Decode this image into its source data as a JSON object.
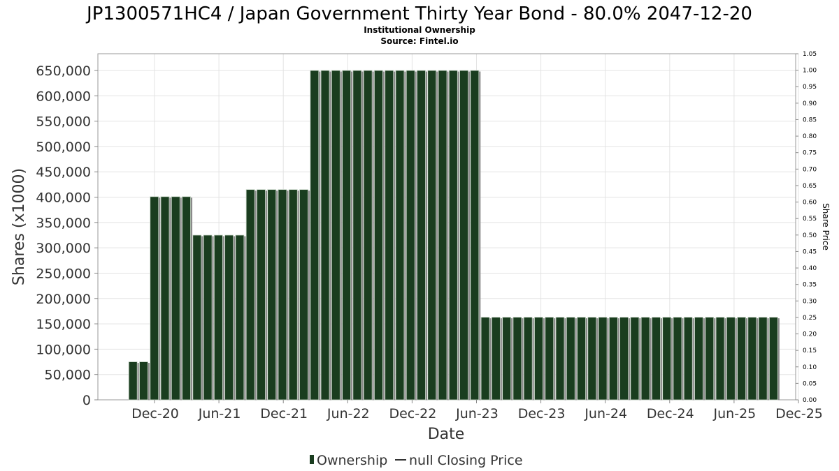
{
  "chart_data": {
    "type": "bar",
    "title": "JP1300571HC4 / Japan Government Thirty Year Bond - 80.0% 2047-12-20",
    "subtitle_line1": "Institutional Ownership",
    "subtitle_line2": "Source: Fintel.io",
    "xlabel": "Date",
    "ylabel": "Shares (x1000)",
    "y2label": "Share Price",
    "ylim": [
      0,
      680000
    ],
    "y2lim": [
      0,
      1.05
    ],
    "yticks": [
      "0",
      "50,000",
      "100,000",
      "150,000",
      "200,000",
      "250,000",
      "300,000",
      "350,000",
      "400,000",
      "450,000",
      "500,000",
      "550,000",
      "600,000",
      "650,000"
    ],
    "y2ticks": [
      "0.00",
      "0.05",
      "0.10",
      "0.15",
      "0.20",
      "0.25",
      "0.30",
      "0.35",
      "0.40",
      "0.45",
      "0.50",
      "0.55",
      "0.60",
      "0.65",
      "0.70",
      "0.75",
      "0.80",
      "0.85",
      "0.90",
      "0.95",
      "1.00",
      "1.05"
    ],
    "xticks": [
      "Dec-20",
      "Jun-21",
      "Dec-21",
      "Jun-22",
      "Dec-22",
      "Jun-23",
      "Dec-23",
      "Jun-24",
      "Dec-24",
      "Jun-25",
      "Dec-25"
    ],
    "grid": true,
    "legend_position": "bottom",
    "series": [
      {
        "name": "Ownership",
        "color": "#1a3d1f",
        "values": [
          75000,
          75000,
          401000,
          401000,
          401000,
          401000,
          325000,
          325000,
          325000,
          325000,
          325000,
          415000,
          415000,
          415000,
          415000,
          415000,
          415000,
          650000,
          650000,
          650000,
          650000,
          650000,
          650000,
          650000,
          650000,
          650000,
          650000,
          650000,
          650000,
          650000,
          650000,
          650000,
          650000,
          163000,
          163000,
          163000,
          163000,
          163000,
          163000,
          163000,
          163000,
          163000,
          163000,
          163000,
          163000,
          163000,
          163000,
          163000,
          163000,
          163000,
          163000,
          163000,
          163000,
          163000,
          163000,
          163000,
          163000,
          163000,
          163000,
          163000,
          163000
        ]
      },
      {
        "name": "null Closing Price",
        "color": "#333333",
        "values": []
      }
    ]
  }
}
